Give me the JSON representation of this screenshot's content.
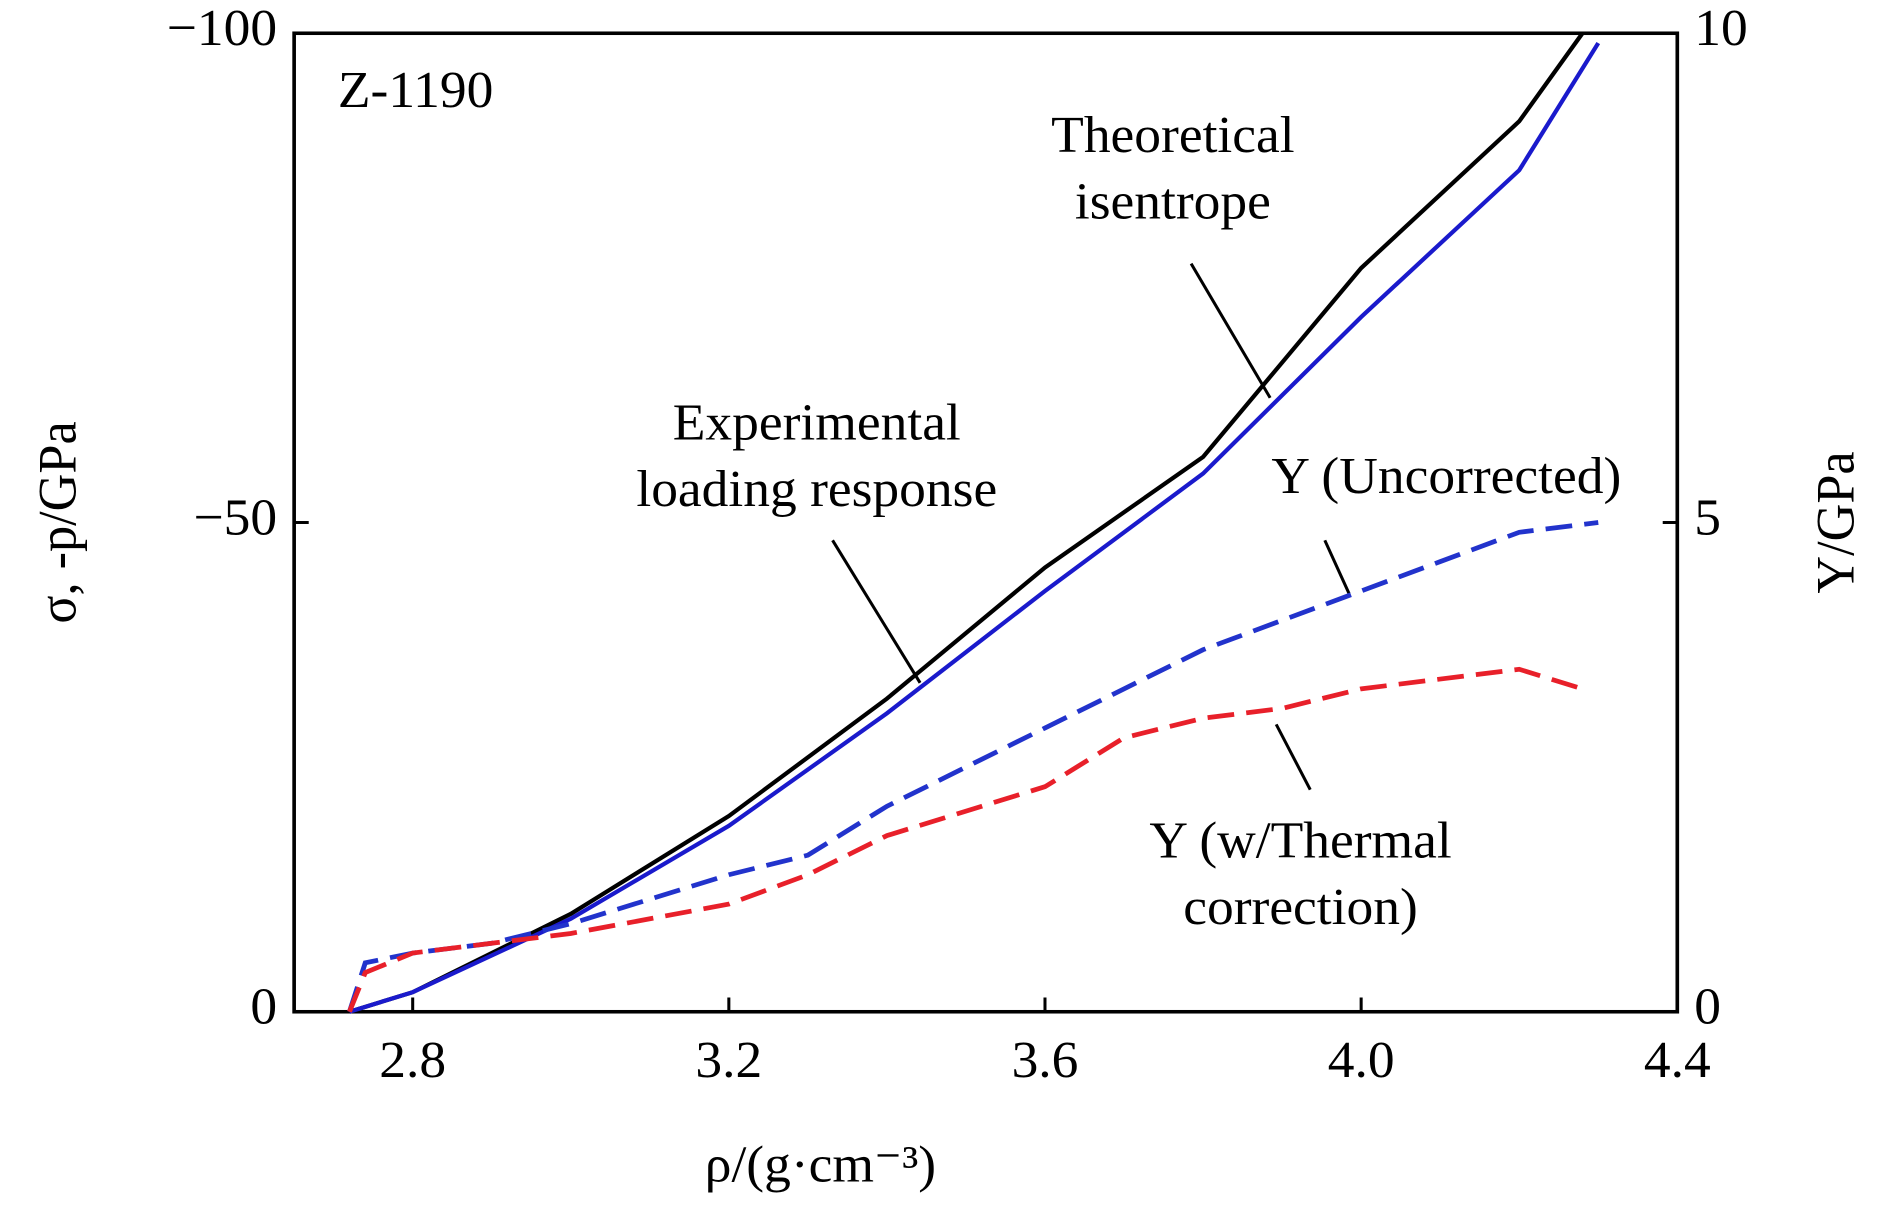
{
  "chart_data": {
    "type": "line",
    "annotations": [
      {
        "lines": [
          "Z-1190"
        ]
      },
      {
        "lines": [
          "Theoretical",
          "isentrope"
        ]
      },
      {
        "lines": [
          "Experimental",
          "loading response"
        ]
      },
      {
        "lines": [
          "Y (Uncorrected)"
        ]
      },
      {
        "lines": [
          "Y (w/Thermal",
          "correction)"
        ]
      }
    ],
    "xlabel": "ρ/(g·cm⁻³)",
    "ylabel": "σ, -p/GPa",
    "y2label": "Y/GPa",
    "xlim": [
      2.65,
      4.4
    ],
    "xticks": [
      2.8,
      3.2,
      3.6,
      {
        "value": 4.0,
        "label": "4.0"
      },
      4.4
    ],
    "ylim": [
      0,
      -100
    ],
    "yticks": [
      0,
      {
        "value": -50,
        "label": "−50"
      },
      {
        "value": -100,
        "label": "−100"
      }
    ],
    "y2lim": [
      0,
      10
    ],
    "y2ticks": [
      0,
      5,
      10
    ],
    "series": [
      {
        "name": "Experimental loading response",
        "color": "#000000",
        "style": "solid",
        "x": [
          2.72,
          2.8,
          3.0,
          3.2,
          3.4,
          3.6,
          3.8,
          4.0,
          4.2,
          4.28
        ],
        "values": [
          0,
          -2,
          -10,
          -20,
          -32,
          -45.4,
          -56.7,
          -76,
          -91,
          -100
        ]
      },
      {
        "name": "Theoretical isentrope",
        "color": "#1a1acc",
        "style": "solid",
        "x": [
          2.72,
          2.8,
          3.0,
          3.2,
          3.4,
          3.6,
          3.8,
          4.0,
          4.2,
          4.3
        ],
        "values": [
          0,
          -2,
          -9.5,
          -19,
          -30.5,
          -43,
          -55,
          -71,
          -86,
          -99
        ]
      },
      {
        "name": "Y (Uncorrected)",
        "color": "#2233cc",
        "style": "dashed",
        "axis": "y2",
        "x": [
          2.72,
          2.74,
          2.8,
          2.9,
          3.0,
          3.2,
          3.3,
          3.4,
          3.6,
          3.7,
          3.8,
          3.9,
          4.0,
          4.1,
          4.2,
          4.3
        ],
        "values": [
          0,
          0.5,
          0.6,
          0.7,
          0.9,
          1.4,
          1.6,
          2.1,
          2.9,
          3.3,
          3.7,
          4.0,
          4.3,
          4.6,
          4.9,
          5.0
        ]
      },
      {
        "name": "Y (w/Thermal correction)",
        "color": "#e8202a",
        "style": "dashed",
        "axis": "y2",
        "x": [
          2.72,
          2.74,
          2.8,
          2.9,
          3.0,
          3.2,
          3.3,
          3.4,
          3.6,
          3.7,
          3.8,
          3.9,
          4.0,
          4.1,
          4.2,
          4.28
        ],
        "values": [
          0,
          0.4,
          0.6,
          0.7,
          0.8,
          1.1,
          1.4,
          1.8,
          2.3,
          2.8,
          3.0,
          3.1,
          3.3,
          3.4,
          3.5,
          3.3
        ]
      }
    ]
  }
}
